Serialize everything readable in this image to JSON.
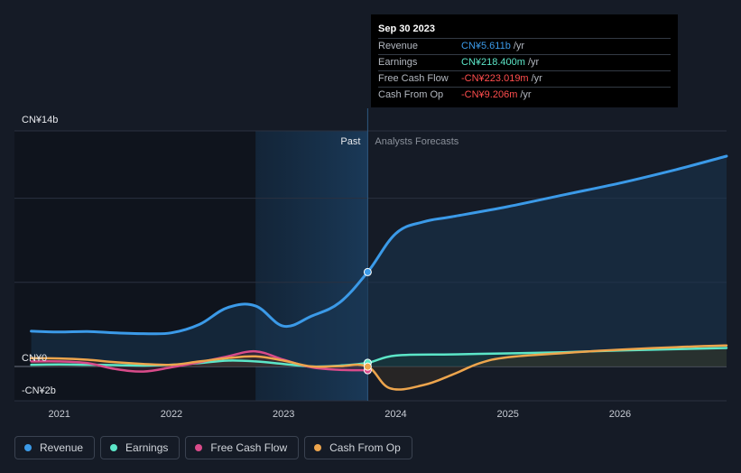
{
  "tooltip": {
    "date": "Sep 30 2023",
    "rows": [
      {
        "label": "Revenue",
        "value": "CN¥5.611b",
        "unit": "/yr",
        "color": "#3b9ae8"
      },
      {
        "label": "Earnings",
        "value": "CN¥218.400m",
        "unit": "/yr",
        "color": "#5ce6c8"
      },
      {
        "label": "Free Cash Flow",
        "value": "-CN¥223.019m",
        "unit": "/yr",
        "color": "#ff4d4d"
      },
      {
        "label": "Cash From Op",
        "value": "-CN¥9.206m",
        "unit": "/yr",
        "color": "#ff4d4d"
      }
    ]
  },
  "legend": [
    {
      "label": "Revenue",
      "color": "#3b9ae8"
    },
    {
      "label": "Earnings",
      "color": "#5ce6c8"
    },
    {
      "label": "Free Cash Flow",
      "color": "#d94b8a"
    },
    {
      "label": "Cash From Op",
      "color": "#eda54d"
    }
  ],
  "chart_data": {
    "type": "line",
    "title": "",
    "unit": "CN¥ billions",
    "ylim": [
      -2,
      14
    ],
    "y_tick_labels": [
      {
        "value": 14,
        "label": "CN¥14b"
      },
      {
        "value": 0,
        "label": "CN¥0"
      },
      {
        "value": -2,
        "label": "-CN¥2b"
      }
    ],
    "xlim": [
      2020.6,
      2026.95
    ],
    "x_ticks": [
      2021,
      2022,
      2023,
      2024,
      2025,
      2026
    ],
    "x_tick_labels": [
      "2021",
      "2022",
      "2023",
      "2024",
      "2025",
      "2026"
    ],
    "past_label": "Past",
    "forecast_label": "Analysts Forecasts",
    "divider_x": 2023.75,
    "highlight_start_x": 2022.75,
    "series": [
      {
        "name": "Revenue",
        "color": "#3b9ae8",
        "points": [
          [
            2020.75,
            2.1
          ],
          [
            2021.0,
            2.05
          ],
          [
            2021.25,
            2.08
          ],
          [
            2021.5,
            2.0
          ],
          [
            2021.75,
            1.95
          ],
          [
            2022.0,
            2.0
          ],
          [
            2022.25,
            2.5
          ],
          [
            2022.5,
            3.5
          ],
          [
            2022.75,
            3.6
          ],
          [
            2023.0,
            2.4
          ],
          [
            2023.25,
            3.0
          ],
          [
            2023.5,
            3.8
          ],
          [
            2023.75,
            5.611
          ],
          [
            2024.0,
            7.9
          ],
          [
            2024.25,
            8.6
          ],
          [
            2024.5,
            8.9
          ],
          [
            2025.0,
            9.5
          ],
          [
            2025.5,
            10.2
          ],
          [
            2026.0,
            10.9
          ],
          [
            2026.5,
            11.7
          ],
          [
            2026.95,
            12.5
          ]
        ]
      },
      {
        "name": "Earnings",
        "color": "#5ce6c8",
        "points": [
          [
            2020.75,
            0.1
          ],
          [
            2021.0,
            0.12
          ],
          [
            2021.25,
            0.1
          ],
          [
            2021.5,
            0.08
          ],
          [
            2021.75,
            0.05
          ],
          [
            2022.0,
            0.1
          ],
          [
            2022.25,
            0.2
          ],
          [
            2022.5,
            0.35
          ],
          [
            2022.75,
            0.3
          ],
          [
            2023.0,
            0.15
          ],
          [
            2023.25,
            0.0
          ],
          [
            2023.5,
            0.05
          ],
          [
            2023.75,
            0.218
          ],
          [
            2024.0,
            0.65
          ],
          [
            2024.5,
            0.72
          ],
          [
            2025.0,
            0.78
          ],
          [
            2025.5,
            0.85
          ],
          [
            2026.0,
            0.95
          ],
          [
            2026.95,
            1.1
          ]
        ]
      },
      {
        "name": "Free Cash Flow",
        "color": "#d94b8a",
        "points": [
          [
            2020.75,
            0.3
          ],
          [
            2021.0,
            0.3
          ],
          [
            2021.25,
            0.2
          ],
          [
            2021.5,
            -0.15
          ],
          [
            2021.75,
            -0.3
          ],
          [
            2022.0,
            -0.05
          ],
          [
            2022.25,
            0.25
          ],
          [
            2022.5,
            0.6
          ],
          [
            2022.75,
            0.9
          ],
          [
            2023.0,
            0.4
          ],
          [
            2023.25,
            -0.05
          ],
          [
            2023.5,
            -0.2
          ],
          [
            2023.75,
            -0.223
          ]
        ]
      },
      {
        "name": "Cash From Op",
        "color": "#eda54d",
        "points": [
          [
            2020.75,
            0.5
          ],
          [
            2021.0,
            0.48
          ],
          [
            2021.25,
            0.4
          ],
          [
            2021.5,
            0.25
          ],
          [
            2021.75,
            0.15
          ],
          [
            2022.0,
            0.1
          ],
          [
            2022.25,
            0.3
          ],
          [
            2022.5,
            0.5
          ],
          [
            2022.75,
            0.6
          ],
          [
            2023.0,
            0.35
          ],
          [
            2023.25,
            0.0
          ],
          [
            2023.5,
            0.02
          ],
          [
            2023.75,
            -0.009
          ],
          [
            2023.95,
            -1.3
          ],
          [
            2024.25,
            -1.1
          ],
          [
            2024.5,
            -0.5
          ],
          [
            2024.75,
            0.2
          ],
          [
            2025.0,
            0.55
          ],
          [
            2025.5,
            0.8
          ],
          [
            2026.0,
            1.0
          ],
          [
            2026.5,
            1.15
          ],
          [
            2026.95,
            1.25
          ]
        ]
      }
    ]
  }
}
